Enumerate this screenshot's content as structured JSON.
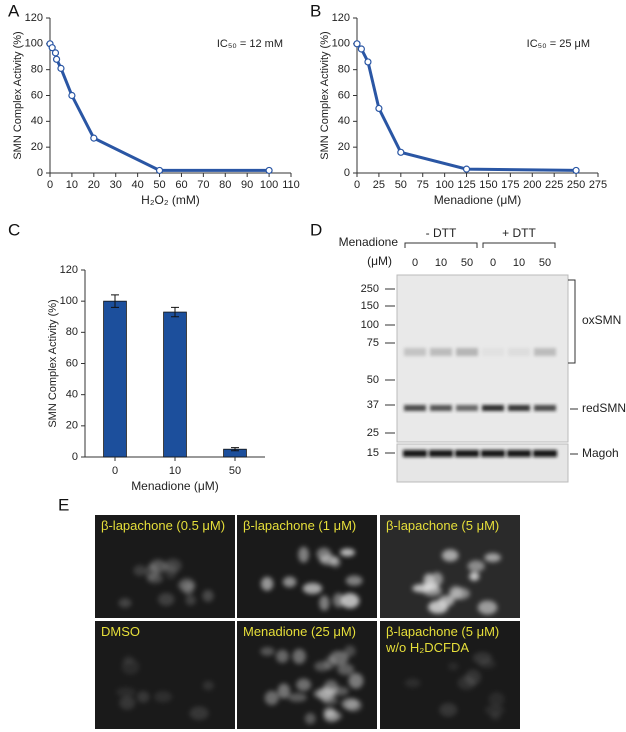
{
  "chart_data": [
    {
      "type": "line",
      "label": "A",
      "x": [
        0,
        1,
        2.5,
        3,
        5,
        10,
        20,
        50,
        100
      ],
      "values": [
        100,
        97,
        93,
        88,
        81,
        60,
        27,
        2,
        2
      ],
      "color": "#2a56a4",
      "xlim": [
        0,
        110
      ],
      "xticks": [
        0,
        10,
        20,
        30,
        40,
        50,
        60,
        70,
        80,
        90,
        100,
        110
      ],
      "ylim": [
        0,
        120
      ],
      "yticks": [
        0,
        20,
        40,
        60,
        80,
        100,
        120
      ],
      "xlabel": "H₂O₂ (mM)",
      "ylabel": "SMN Complex Activity (%)",
      "annotation": "IC₅₀ = 12 mM"
    },
    {
      "type": "line",
      "label": "B",
      "x": [
        0,
        5,
        12.5,
        25,
        50,
        125,
        250
      ],
      "values": [
        100,
        96,
        86,
        50,
        16,
        3,
        2
      ],
      "color": "#2a56a4",
      "xlim": [
        0,
        275
      ],
      "xticks": [
        0,
        25,
        50,
        75,
        100,
        125,
        150,
        175,
        200,
        225,
        250,
        275
      ],
      "ylim": [
        0,
        120
      ],
      "yticks": [
        0,
        20,
        40,
        60,
        80,
        100,
        120
      ],
      "xlabel": "Menadione (μM)",
      "ylabel": "SMN Complex Activity (%)",
      "annotation": "IC₅₀ = 25 μM"
    },
    {
      "type": "bar",
      "label": "C",
      "categories": [
        "0",
        "10",
        "50"
      ],
      "values": [
        100,
        93,
        5
      ],
      "errors": [
        4,
        3,
        1
      ],
      "color": "#1c4f9c",
      "ylim": [
        0,
        120
      ],
      "yticks": [
        0,
        20,
        40,
        60,
        80,
        100,
        120
      ],
      "xlabel": "Menadione (μM)",
      "ylabel": "SMN Complex Activity (%)"
    }
  ],
  "blot": {
    "label": "D",
    "treatment": "Menadione",
    "unit": "(μM)",
    "groups": [
      "- DTT",
      "+ DTT"
    ],
    "lanes": [
      "0",
      "10",
      "50",
      "0",
      "10",
      "50"
    ],
    "markers": [
      "250",
      "150",
      "100",
      "75",
      "50",
      "37",
      "25",
      "15"
    ],
    "bands": [
      "oxSMN",
      "redSMN",
      "Magoh"
    ]
  },
  "micrographs": {
    "label": "E",
    "panels": [
      [
        "β-lapachone (0.5 μM)"
      ],
      [
        "β-lapachone (1 μM)"
      ],
      [
        "β-lapachone (5 μM)"
      ],
      [
        "DMSO"
      ],
      [
        "Menadione (25 μM)"
      ],
      [
        "β-lapachone (5 μM)",
        "w/o H₂DCFDA"
      ]
    ]
  }
}
